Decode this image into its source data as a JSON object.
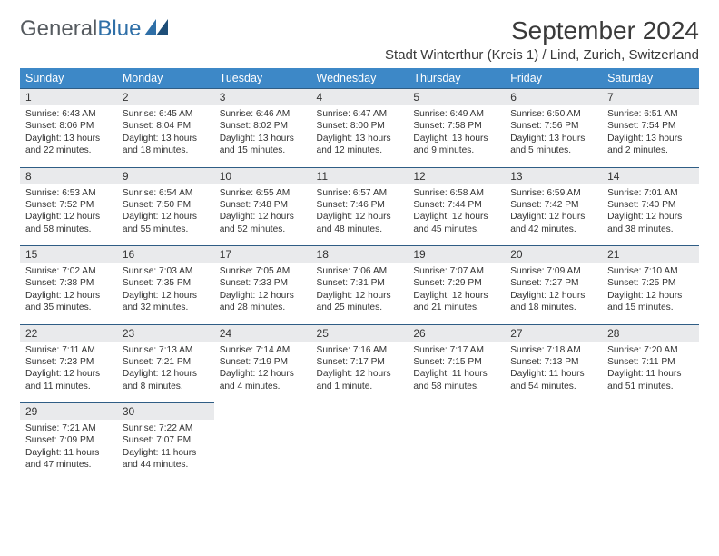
{
  "brand": {
    "name_a": "General",
    "name_b": "Blue",
    "mark_color": "#2f6fa7"
  },
  "header": {
    "month_title": "September 2024",
    "location": "Stadt Winterthur (Kreis 1) / Lind, Zurich, Switzerland"
  },
  "colors": {
    "header_bg": "#3d88c7",
    "header_text": "#ffffff",
    "daynum_bg": "#e9eaec",
    "row_divider": "#2f5d85",
    "text": "#333333"
  },
  "weekdays": [
    "Sunday",
    "Monday",
    "Tuesday",
    "Wednesday",
    "Thursday",
    "Friday",
    "Saturday"
  ],
  "weeks": [
    [
      {
        "n": "1",
        "sunrise": "Sunrise: 6:43 AM",
        "sunset": "Sunset: 8:06 PM",
        "day1": "Daylight: 13 hours",
        "day2": "and 22 minutes."
      },
      {
        "n": "2",
        "sunrise": "Sunrise: 6:45 AM",
        "sunset": "Sunset: 8:04 PM",
        "day1": "Daylight: 13 hours",
        "day2": "and 18 minutes."
      },
      {
        "n": "3",
        "sunrise": "Sunrise: 6:46 AM",
        "sunset": "Sunset: 8:02 PM",
        "day1": "Daylight: 13 hours",
        "day2": "and 15 minutes."
      },
      {
        "n": "4",
        "sunrise": "Sunrise: 6:47 AM",
        "sunset": "Sunset: 8:00 PM",
        "day1": "Daylight: 13 hours",
        "day2": "and 12 minutes."
      },
      {
        "n": "5",
        "sunrise": "Sunrise: 6:49 AM",
        "sunset": "Sunset: 7:58 PM",
        "day1": "Daylight: 13 hours",
        "day2": "and 9 minutes."
      },
      {
        "n": "6",
        "sunrise": "Sunrise: 6:50 AM",
        "sunset": "Sunset: 7:56 PM",
        "day1": "Daylight: 13 hours",
        "day2": "and 5 minutes."
      },
      {
        "n": "7",
        "sunrise": "Sunrise: 6:51 AM",
        "sunset": "Sunset: 7:54 PM",
        "day1": "Daylight: 13 hours",
        "day2": "and 2 minutes."
      }
    ],
    [
      {
        "n": "8",
        "sunrise": "Sunrise: 6:53 AM",
        "sunset": "Sunset: 7:52 PM",
        "day1": "Daylight: 12 hours",
        "day2": "and 58 minutes."
      },
      {
        "n": "9",
        "sunrise": "Sunrise: 6:54 AM",
        "sunset": "Sunset: 7:50 PM",
        "day1": "Daylight: 12 hours",
        "day2": "and 55 minutes."
      },
      {
        "n": "10",
        "sunrise": "Sunrise: 6:55 AM",
        "sunset": "Sunset: 7:48 PM",
        "day1": "Daylight: 12 hours",
        "day2": "and 52 minutes."
      },
      {
        "n": "11",
        "sunrise": "Sunrise: 6:57 AM",
        "sunset": "Sunset: 7:46 PM",
        "day1": "Daylight: 12 hours",
        "day2": "and 48 minutes."
      },
      {
        "n": "12",
        "sunrise": "Sunrise: 6:58 AM",
        "sunset": "Sunset: 7:44 PM",
        "day1": "Daylight: 12 hours",
        "day2": "and 45 minutes."
      },
      {
        "n": "13",
        "sunrise": "Sunrise: 6:59 AM",
        "sunset": "Sunset: 7:42 PM",
        "day1": "Daylight: 12 hours",
        "day2": "and 42 minutes."
      },
      {
        "n": "14",
        "sunrise": "Sunrise: 7:01 AM",
        "sunset": "Sunset: 7:40 PM",
        "day1": "Daylight: 12 hours",
        "day2": "and 38 minutes."
      }
    ],
    [
      {
        "n": "15",
        "sunrise": "Sunrise: 7:02 AM",
        "sunset": "Sunset: 7:38 PM",
        "day1": "Daylight: 12 hours",
        "day2": "and 35 minutes."
      },
      {
        "n": "16",
        "sunrise": "Sunrise: 7:03 AM",
        "sunset": "Sunset: 7:35 PM",
        "day1": "Daylight: 12 hours",
        "day2": "and 32 minutes."
      },
      {
        "n": "17",
        "sunrise": "Sunrise: 7:05 AM",
        "sunset": "Sunset: 7:33 PM",
        "day1": "Daylight: 12 hours",
        "day2": "and 28 minutes."
      },
      {
        "n": "18",
        "sunrise": "Sunrise: 7:06 AM",
        "sunset": "Sunset: 7:31 PM",
        "day1": "Daylight: 12 hours",
        "day2": "and 25 minutes."
      },
      {
        "n": "19",
        "sunrise": "Sunrise: 7:07 AM",
        "sunset": "Sunset: 7:29 PM",
        "day1": "Daylight: 12 hours",
        "day2": "and 21 minutes."
      },
      {
        "n": "20",
        "sunrise": "Sunrise: 7:09 AM",
        "sunset": "Sunset: 7:27 PM",
        "day1": "Daylight: 12 hours",
        "day2": "and 18 minutes."
      },
      {
        "n": "21",
        "sunrise": "Sunrise: 7:10 AM",
        "sunset": "Sunset: 7:25 PM",
        "day1": "Daylight: 12 hours",
        "day2": "and 15 minutes."
      }
    ],
    [
      {
        "n": "22",
        "sunrise": "Sunrise: 7:11 AM",
        "sunset": "Sunset: 7:23 PM",
        "day1": "Daylight: 12 hours",
        "day2": "and 11 minutes."
      },
      {
        "n": "23",
        "sunrise": "Sunrise: 7:13 AM",
        "sunset": "Sunset: 7:21 PM",
        "day1": "Daylight: 12 hours",
        "day2": "and 8 minutes."
      },
      {
        "n": "24",
        "sunrise": "Sunrise: 7:14 AM",
        "sunset": "Sunset: 7:19 PM",
        "day1": "Daylight: 12 hours",
        "day2": "and 4 minutes."
      },
      {
        "n": "25",
        "sunrise": "Sunrise: 7:16 AM",
        "sunset": "Sunset: 7:17 PM",
        "day1": "Daylight: 12 hours",
        "day2": "and 1 minute."
      },
      {
        "n": "26",
        "sunrise": "Sunrise: 7:17 AM",
        "sunset": "Sunset: 7:15 PM",
        "day1": "Daylight: 11 hours",
        "day2": "and 58 minutes."
      },
      {
        "n": "27",
        "sunrise": "Sunrise: 7:18 AM",
        "sunset": "Sunset: 7:13 PM",
        "day1": "Daylight: 11 hours",
        "day2": "and 54 minutes."
      },
      {
        "n": "28",
        "sunrise": "Sunrise: 7:20 AM",
        "sunset": "Sunset: 7:11 PM",
        "day1": "Daylight: 11 hours",
        "day2": "and 51 minutes."
      }
    ],
    [
      {
        "n": "29",
        "sunrise": "Sunrise: 7:21 AM",
        "sunset": "Sunset: 7:09 PM",
        "day1": "Daylight: 11 hours",
        "day2": "and 47 minutes."
      },
      {
        "n": "30",
        "sunrise": "Sunrise: 7:22 AM",
        "sunset": "Sunset: 7:07 PM",
        "day1": "Daylight: 11 hours",
        "day2": "and 44 minutes."
      },
      null,
      null,
      null,
      null,
      null
    ]
  ]
}
